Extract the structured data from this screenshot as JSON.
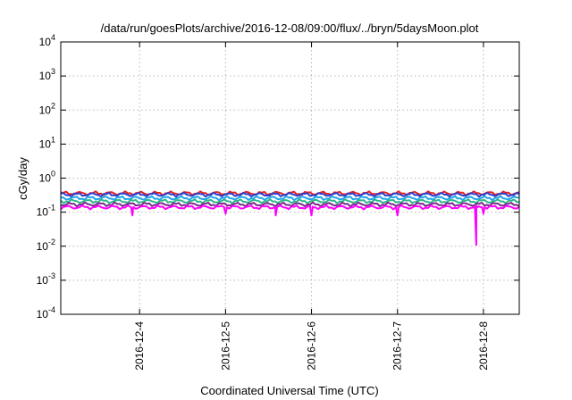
{
  "chart_data": {
    "type": "line",
    "title": "/data/run/goesPlots/archive/2016-12-08/09:00/flux/../bryn/5daysMoon.plot",
    "xlabel": "Coordinated Universal Time (UTC)",
    "ylabel": "cGy/day",
    "y_scale": "log",
    "ylim": [
      0.0001,
      10000
    ],
    "y_ticks": [
      {
        "value": 0.0001,
        "base": "10",
        "exp": "-4"
      },
      {
        "value": 0.001,
        "base": "10",
        "exp": "-3"
      },
      {
        "value": 0.01,
        "base": "10",
        "exp": "-2"
      },
      {
        "value": 0.1,
        "base": "10",
        "exp": "-1"
      },
      {
        "value": 1,
        "base": "10",
        "exp": "0"
      },
      {
        "value": 10,
        "base": "10",
        "exp": "1"
      },
      {
        "value": 100,
        "base": "10",
        "exp": "2"
      },
      {
        "value": 1000,
        "base": "10",
        "exp": "3"
      },
      {
        "value": 10000,
        "base": "10",
        "exp": "4"
      }
    ],
    "xlim": [
      "2016-12-03T02:00",
      "2016-12-08T10:00"
    ],
    "x_ticks": [
      "2016-12-4",
      "2016-12-5",
      "2016-12-6",
      "2016-12-7",
      "2016-12-8"
    ],
    "x_tick_dates": [
      "2016-12-04T00:00",
      "2016-12-05T00:00",
      "2016-12-06T00:00",
      "2016-12-07T00:00",
      "2016-12-08T00:00"
    ],
    "grid": true,
    "legend": "none",
    "series": [
      {
        "color": "#e8201e",
        "base": 0.36,
        "values": [
          [
            "2016-12-03T02:00",
            0.36
          ],
          [
            "2016-12-03T12:00",
            0.34
          ],
          [
            "2016-12-04T00:00",
            0.35
          ],
          [
            "2016-12-04T12:00",
            0.33
          ],
          [
            "2016-12-05T00:00",
            0.34
          ],
          [
            "2016-12-05T12:00",
            0.35
          ],
          [
            "2016-12-06T00:00",
            0.34
          ],
          [
            "2016-12-06T12:00",
            0.33
          ],
          [
            "2016-12-07T00:00",
            0.35
          ],
          [
            "2016-12-07T12:00",
            0.34
          ],
          [
            "2016-12-08T00:00",
            0.35
          ],
          [
            "2016-12-08T10:00",
            0.36
          ]
        ]
      },
      {
        "color": "#2a3fcf",
        "base": 0.33,
        "values": [
          [
            "2016-12-03T02:00",
            0.33
          ],
          [
            "2016-12-03T12:00",
            0.32
          ],
          [
            "2016-12-04T00:00",
            0.32
          ],
          [
            "2016-12-04T12:00",
            0.31
          ],
          [
            "2016-12-05T00:00",
            0.32
          ],
          [
            "2016-12-05T12:00",
            0.32
          ],
          [
            "2016-12-06T00:00",
            0.31
          ],
          [
            "2016-12-06T12:00",
            0.31
          ],
          [
            "2016-12-07T00:00",
            0.32
          ],
          [
            "2016-12-07T12:00",
            0.31
          ],
          [
            "2016-12-08T00:00",
            0.32
          ],
          [
            "2016-12-08T10:00",
            0.33
          ]
        ]
      },
      {
        "color": "#1ea7e8",
        "base": 0.26,
        "values": [
          [
            "2016-12-03T02:00",
            0.26
          ],
          [
            "2016-12-03T12:00",
            0.25
          ],
          [
            "2016-12-04T00:00",
            0.25
          ],
          [
            "2016-12-04T12:00",
            0.24
          ],
          [
            "2016-12-05T00:00",
            0.25
          ],
          [
            "2016-12-05T12:00",
            0.25
          ],
          [
            "2016-12-06T00:00",
            0.24
          ],
          [
            "2016-12-06T12:00",
            0.24
          ],
          [
            "2016-12-07T00:00",
            0.25
          ],
          [
            "2016-12-07T12:00",
            0.24
          ],
          [
            "2016-12-08T00:00",
            0.25
          ],
          [
            "2016-12-08T10:00",
            0.26
          ]
        ]
      },
      {
        "color": "#2db58a",
        "base": 0.21,
        "values": [
          [
            "2016-12-03T02:00",
            0.21
          ],
          [
            "2016-12-03T12:00",
            0.2
          ],
          [
            "2016-12-04T00:00",
            0.2
          ],
          [
            "2016-12-04T12:00",
            0.2
          ],
          [
            "2016-12-05T00:00",
            0.2
          ],
          [
            "2016-12-05T12:00",
            0.21
          ],
          [
            "2016-12-06T00:00",
            0.2
          ],
          [
            "2016-12-06T12:00",
            0.2
          ],
          [
            "2016-12-07T00:00",
            0.21
          ],
          [
            "2016-12-07T12:00",
            0.2
          ],
          [
            "2016-12-08T00:00",
            0.2
          ],
          [
            "2016-12-08T10:00",
            0.21
          ]
        ]
      },
      {
        "color": "#7a2a8a",
        "base": 0.17,
        "values": [
          [
            "2016-12-03T02:00",
            0.17
          ],
          [
            "2016-12-03T12:00",
            0.16
          ],
          [
            "2016-12-04T00:00",
            0.16
          ],
          [
            "2016-12-04T12:00",
            0.16
          ],
          [
            "2016-12-05T00:00",
            0.16
          ],
          [
            "2016-12-05T12:00",
            0.17
          ],
          [
            "2016-12-06T00:00",
            0.16
          ],
          [
            "2016-12-06T12:00",
            0.16
          ],
          [
            "2016-12-07T00:00",
            0.17
          ],
          [
            "2016-12-07T12:00",
            0.16
          ],
          [
            "2016-12-08T00:00",
            0.16
          ],
          [
            "2016-12-08T10:00",
            0.17
          ]
        ]
      },
      {
        "color": "#ff00ff",
        "base": 0.14,
        "values": [
          [
            "2016-12-03T02:00",
            0.14
          ],
          [
            "2016-12-03T22:00",
            0.08
          ],
          [
            "2016-12-04T12:00",
            0.13
          ],
          [
            "2016-12-05T00:00",
            0.09
          ],
          [
            "2016-12-05T14:00",
            0.08
          ],
          [
            "2016-12-06T00:00",
            0.08
          ],
          [
            "2016-12-06T12:00",
            0.13
          ],
          [
            "2016-12-07T00:00",
            0.08
          ],
          [
            "2016-12-07T12:00",
            0.13
          ],
          [
            "2016-12-07T22:00",
            0.011
          ],
          [
            "2016-12-08T00:00",
            0.09
          ],
          [
            "2016-12-08T10:00",
            0.14
          ]
        ]
      }
    ]
  }
}
